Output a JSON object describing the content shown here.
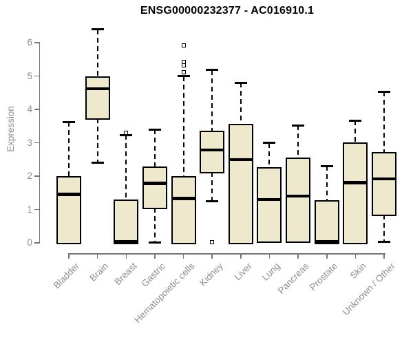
{
  "chart_data": {
    "type": "boxplot",
    "title": "ENSG00000232377 - AC016910.1",
    "ylabel": "Expression",
    "xlabel": "",
    "ylim": [
      0,
      6
    ],
    "yticks": [
      0,
      1,
      2,
      3,
      4,
      5,
      6
    ],
    "grid": false,
    "legend": "none",
    "categories": [
      "Bladder",
      "Brain",
      "Breast",
      "Gastric",
      "Hematopoietic cells",
      "Kidney",
      "Liver",
      "Lung",
      "Pancreas",
      "Prostate",
      "Skin",
      "Unknown / Other"
    ],
    "series": [
      {
        "name": "Bladder",
        "whisker_low": null,
        "q1": 0.0,
        "median": 1.45,
        "q3": 2.0,
        "whisker_high": 3.62,
        "outliers": []
      },
      {
        "name": "Brain",
        "whisker_low": 2.4,
        "q1": 3.73,
        "median": 4.62,
        "q3": 5.0,
        "whisker_high": 6.4,
        "outliers": []
      },
      {
        "name": "Breast",
        "whisker_low": null,
        "q1": 0.0,
        "median": 0.03,
        "q3": 1.3,
        "whisker_high": 3.23,
        "outliers": [
          3.3
        ]
      },
      {
        "name": "Gastric",
        "whisker_low": 0.02,
        "q1": 1.05,
        "median": 1.78,
        "q3": 2.28,
        "whisker_high": 3.4,
        "outliers": []
      },
      {
        "name": "Hematopoietic cells",
        "whisker_low": null,
        "q1": 0.0,
        "median": 1.33,
        "q3": 2.0,
        "whisker_high": 5.0,
        "outliers": [
          5.92,
          5.42,
          5.32,
          5.12
        ]
      },
      {
        "name": "Kidney",
        "whisker_low": 1.25,
        "q1": 2.12,
        "median": 2.78,
        "q3": 3.37,
        "whisker_high": 5.18,
        "outliers": [
          0.03
        ]
      },
      {
        "name": "Liver",
        "whisker_low": null,
        "q1": 0.0,
        "median": 2.5,
        "q3": 3.56,
        "whisker_high": 4.8,
        "outliers": []
      },
      {
        "name": "Lung",
        "whisker_low": null,
        "q1": 0.05,
        "median": 1.3,
        "q3": 2.26,
        "whisker_high": 3.0,
        "outliers": []
      },
      {
        "name": "Pancreas",
        "whisker_low": null,
        "q1": 0.05,
        "median": 1.4,
        "q3": 2.55,
        "whisker_high": 3.52,
        "outliers": []
      },
      {
        "name": "Prostate",
        "whisker_low": null,
        "q1": 0.0,
        "median": 0.03,
        "q3": 1.28,
        "whisker_high": 2.3,
        "outliers": []
      },
      {
        "name": "Skin",
        "whisker_low": null,
        "q1": 0.0,
        "median": 1.8,
        "q3": 3.02,
        "whisker_high": 3.67,
        "outliers": []
      },
      {
        "name": "Unknown / Other",
        "whisker_low": 0.03,
        "q1": 0.85,
        "median": 1.92,
        "q3": 2.73,
        "whisker_high": 4.53,
        "outliers": []
      }
    ]
  },
  "colors": {
    "background": "#ffffff",
    "box_fill": "#EEE8CD",
    "box_border": "#000000",
    "median": "#000000",
    "whisker": "#000000",
    "outlier": "#000000",
    "axis": "#757575",
    "tick_label": "#8e8e8e",
    "title": "#000000"
  }
}
